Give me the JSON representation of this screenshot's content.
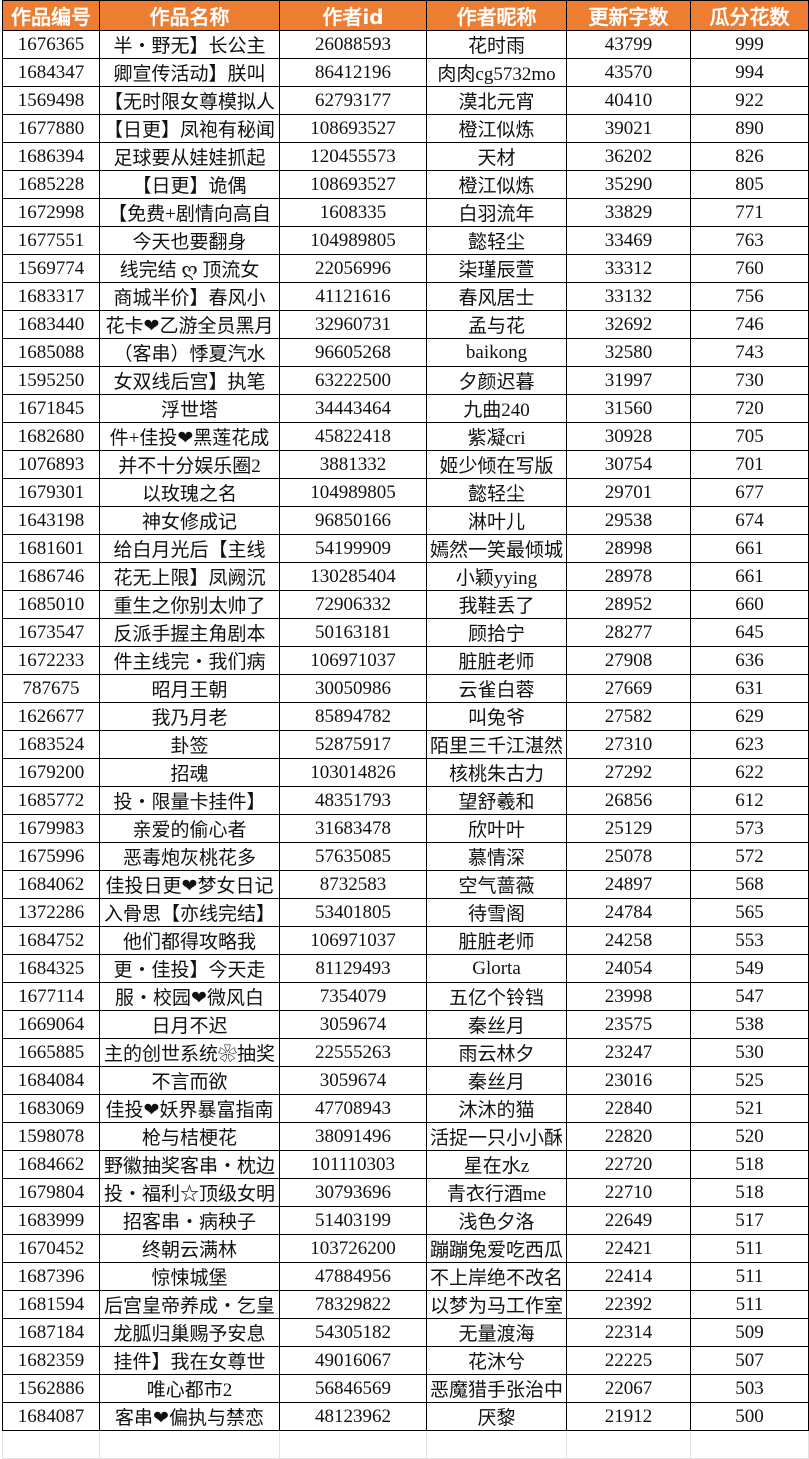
{
  "header_color": "#ED7D31",
  "headers": [
    "作品编号",
    "作品名称",
    "作者id",
    "作者昵称",
    "更新字数",
    "瓜分花数"
  ],
  "rows": [
    [
      "1676365",
      "半・野无】长公主",
      "26088593",
      "花时雨",
      "43799",
      "999"
    ],
    [
      "1684347",
      "卿宣传活动】朕叫",
      "86412196",
      "肉肉cg5732mo",
      "43570",
      "994"
    ],
    [
      "1569498",
      "【无时限女尊模拟人",
      "62793177",
      "漠北元宵",
      "40410",
      "922"
    ],
    [
      "1677880",
      "【日更】凤袍有秘闻",
      "108693527",
      "橙江似炼",
      "39021",
      "890"
    ],
    [
      "1686394",
      "足球要从娃娃抓起",
      "120455573",
      "天材",
      "36202",
      "826"
    ],
    [
      "1685228",
      "【日更】诡偶",
      "108693527",
      "橙江似炼",
      "35290",
      "805"
    ],
    [
      "1672998",
      "【免费+剧情向高自",
      "1608335",
      "白羽流年",
      "33829",
      "771"
    ],
    [
      "1677551",
      "今天也要翻身",
      "104989805",
      "懿轻尘",
      "33469",
      "763"
    ],
    [
      "1569774",
      "线完结 ღ 顶流女",
      "22056996",
      "柒瑾辰萱",
      "33312",
      "760"
    ],
    [
      "1683317",
      "商城半价】春风小",
      "41121616",
      "春风居士",
      "33132",
      "756"
    ],
    [
      "1683440",
      "花卡❤乙游全员黑月",
      "32960731",
      "孟与花",
      "32692",
      "746"
    ],
    [
      "1685088",
      "（客串）悸夏汽水",
      "96605268",
      "baikong",
      "32580",
      "743"
    ],
    [
      "1595250",
      "女双线后宫】执笔",
      "63222500",
      "夕颜迟暮",
      "31997",
      "730"
    ],
    [
      "1671845",
      "浮世塔",
      "34443464",
      "九曲240",
      "31560",
      "720"
    ],
    [
      "1682680",
      "件+佳投❤黑莲花成",
      "45822418",
      "紫凝cri",
      "30928",
      "705"
    ],
    [
      "1076893",
      "并不十分娱乐圈2",
      "3881332",
      "姬少倾在写版",
      "30754",
      "701"
    ],
    [
      "1679301",
      "以玫瑰之名",
      "104989805",
      "懿轻尘",
      "29701",
      "677"
    ],
    [
      "1643198",
      "神女修成记",
      "96850166",
      "淋叶儿",
      "29538",
      "674"
    ],
    [
      "1681601",
      "给白月光后【主线",
      "54199909",
      "嫣然一笑最倾城",
      "28998",
      "661"
    ],
    [
      "1686746",
      "花无上限】凤阙沉",
      "130285404",
      "小颖yying",
      "28978",
      "661"
    ],
    [
      "1685010",
      "重生之你别太帅了",
      "72906332",
      "我鞋丢了",
      "28952",
      "660"
    ],
    [
      "1673547",
      "反派手握主角剧本",
      "50163181",
      "顾拾宁",
      "28277",
      "645"
    ],
    [
      "1672233",
      "件主线完・我们病",
      "106971037",
      "脏脏老师",
      "27908",
      "636"
    ],
    [
      "787675",
      "昭月王朝",
      "30050986",
      "云雀白蓉",
      "27669",
      "631"
    ],
    [
      "1626677",
      "我乃月老",
      "85894782",
      "叫兔爷",
      "27582",
      "629"
    ],
    [
      "1683524",
      "卦签",
      "52875917",
      "陌里三千江湛然",
      "27310",
      "623"
    ],
    [
      "1679200",
      "招魂",
      "103014826",
      "核桃朱古力",
      "27292",
      "622"
    ],
    [
      "1685772",
      "投・限量卡挂件】",
      "48351793",
      "望舒羲和",
      "26856",
      "612"
    ],
    [
      "1679983",
      "亲爱的偷心者",
      "31683478",
      "欣叶叶",
      "25129",
      "573"
    ],
    [
      "1675996",
      "恶毒炮灰桃花多",
      "57635085",
      "慕情深",
      "25078",
      "572"
    ],
    [
      "1684062",
      "佳投日更❤梦女日记",
      "8732583",
      "空气蔷薇",
      "24897",
      "568"
    ],
    [
      "1372286",
      "入骨思【亦线完结】",
      "53401805",
      "待雪阁",
      "24784",
      "565"
    ],
    [
      "1684752",
      "他们都得攻略我",
      "106971037",
      "脏脏老师",
      "24258",
      "553"
    ],
    [
      "1684325",
      "更・佳投】今天走",
      "81129493",
      "Glorta",
      "24054",
      "549"
    ],
    [
      "1677114",
      "服・校园❤微风白",
      "7354079",
      "五亿个铃铛",
      "23998",
      "547"
    ],
    [
      "1669064",
      "日月不迟",
      "3059674",
      "秦丝月",
      "23575",
      "538"
    ],
    [
      "1665885",
      "主的创世系统❀抽奖",
      "22555263",
      "雨云林夕",
      "23247",
      "530"
    ],
    [
      "1684084",
      "不言而欲",
      "3059674",
      "秦丝月",
      "23016",
      "525"
    ],
    [
      "1683069",
      "佳投❤妖界暴富指南",
      "47708943",
      "沐沐的猫",
      "22840",
      "521"
    ],
    [
      "1598078",
      "枪与桔梗花",
      "38091496",
      "活捉一只小小酥",
      "22820",
      "520"
    ],
    [
      "1684662",
      "野徽抽奖客串・枕边",
      "101110303",
      "星在水z",
      "22720",
      "518"
    ],
    [
      "1679804",
      "投・福利☆顶级女明",
      "30793696",
      "青衣行酒me",
      "22710",
      "518"
    ],
    [
      "1683999",
      "招客串・病秧子",
      "51403199",
      "浅色夕洛",
      "22649",
      "517"
    ],
    [
      "1670452",
      "终朝云满林",
      "103726200",
      "蹦蹦兔爱吃西瓜",
      "22421",
      "511"
    ],
    [
      "1687396",
      "惊悚城堡",
      "47884956",
      "不上岸绝不改名",
      "22414",
      "511"
    ],
    [
      "1681594",
      "后宫皇帝养成・乞皇",
      "78329822",
      "以梦为马工作室",
      "22392",
      "511"
    ],
    [
      "1687184",
      "龙胍归巢赐予安息",
      "54305182",
      "无量渡海",
      "22314",
      "509"
    ],
    [
      "1682359",
      "挂件】我在女尊世",
      "49016067",
      "花沐兮",
      "22225",
      "507"
    ],
    [
      "1562886",
      "唯心都市2",
      "56846569",
      "恶魔猎手张治中",
      "22067",
      "503"
    ],
    [
      "1684087",
      "客串❤偏执与禁恋",
      "48123962",
      "厌黎",
      "21912",
      "500"
    ]
  ]
}
